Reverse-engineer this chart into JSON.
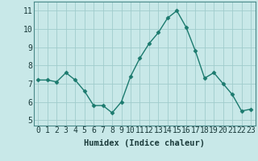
{
  "x": [
    0,
    1,
    2,
    3,
    4,
    5,
    6,
    7,
    8,
    9,
    10,
    11,
    12,
    13,
    14,
    15,
    16,
    17,
    18,
    19,
    20,
    21,
    22,
    23
  ],
  "y": [
    7.2,
    7.2,
    7.1,
    7.6,
    7.2,
    6.6,
    5.8,
    5.8,
    5.4,
    6.0,
    7.4,
    8.4,
    9.2,
    9.8,
    10.6,
    11.0,
    10.1,
    8.8,
    7.3,
    7.6,
    7.0,
    6.4,
    5.5,
    5.6
  ],
  "line_color": "#1b7a6e",
  "marker": "D",
  "marker_size": 2.5,
  "linewidth": 1.0,
  "bg_color": "#c8e8e8",
  "grid_color": "#a0cccc",
  "xlabel": "Humidex (Indice chaleur)",
  "xlabel_fontsize": 7.5,
  "xtick_labels": [
    "0",
    "1",
    "2",
    "3",
    "4",
    "5",
    "6",
    "7",
    "8",
    "9",
    "10",
    "11",
    "12",
    "13",
    "14",
    "15",
    "16",
    "17",
    "18",
    "19",
    "20",
    "21",
    "22",
    "23"
  ],
  "ytick_labels": [
    "5",
    "6",
    "7",
    "8",
    "9",
    "10",
    "11"
  ],
  "ylim": [
    4.7,
    11.5
  ],
  "xlim": [
    -0.5,
    23.5
  ],
  "tick_fontsize": 7,
  "spine_color": "#4a8a8a"
}
